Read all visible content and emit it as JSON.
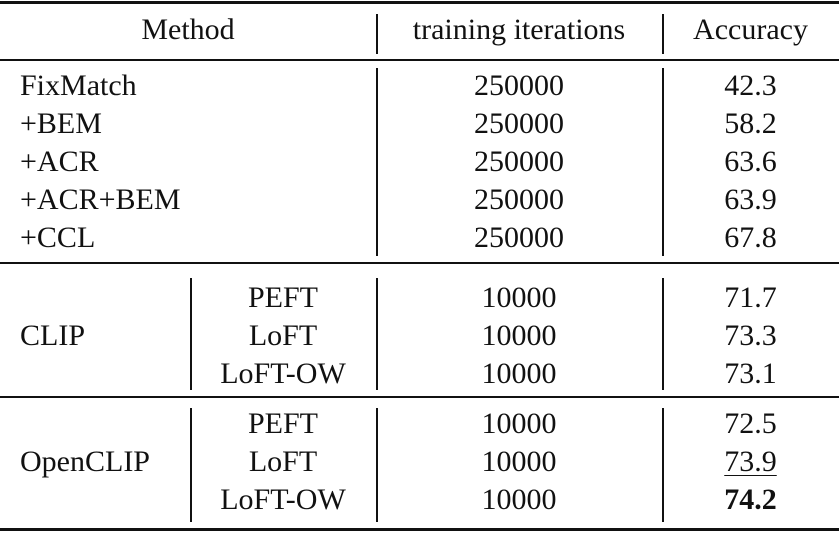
{
  "header": {
    "method": "Method",
    "iterations": "training iterations",
    "accuracy": "Accuracy"
  },
  "baseline_rows": [
    {
      "method": "FixMatch",
      "iterations": "250000",
      "accuracy": "42.3"
    },
    {
      "method": "+BEM",
      "iterations": "250000",
      "accuracy": "58.2"
    },
    {
      "method": "+ACR",
      "iterations": "250000",
      "accuracy": "63.6"
    },
    {
      "method": "+ACR+BEM",
      "iterations": "250000",
      "accuracy": "63.9"
    },
    {
      "method": "+CCL",
      "iterations": "250000",
      "accuracy": "67.8"
    }
  ],
  "groups": [
    {
      "model": "CLIP",
      "rows": [
        {
          "method": "PEFT",
          "iterations": "10000",
          "accuracy": "71.7"
        },
        {
          "method": "LoFT",
          "iterations": "10000",
          "accuracy": "73.3"
        },
        {
          "method": "LoFT-OW",
          "iterations": "10000",
          "accuracy": "73.1"
        }
      ]
    },
    {
      "model": "OpenCLIP",
      "rows": [
        {
          "method": "PEFT",
          "iterations": "10000",
          "accuracy": "72.5"
        },
        {
          "method": "LoFT",
          "iterations": "10000",
          "accuracy": "73.9",
          "style": "underline"
        },
        {
          "method": "LoFT-OW",
          "iterations": "10000",
          "accuracy": "74.2",
          "style": "bold"
        }
      ]
    }
  ]
}
